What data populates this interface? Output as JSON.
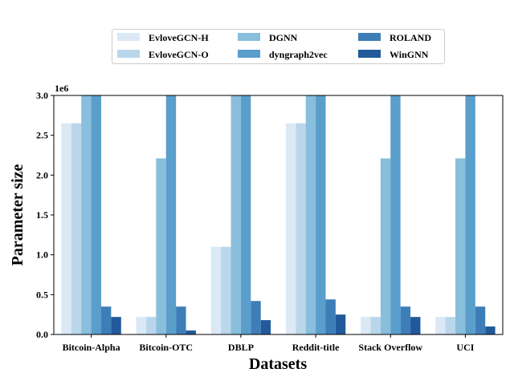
{
  "chart_data": {
    "type": "bar",
    "xlabel": "Datasets",
    "ylabel": "Parameter size",
    "y_offset_label": "1e6",
    "ylim": [
      0,
      3.0
    ],
    "y_ticks": [
      0.0,
      0.5,
      1.0,
      1.5,
      2.0,
      2.5,
      3.0
    ],
    "y_tick_labels": [
      "0.0",
      "0.5",
      "1.0",
      "1.5",
      "2.0",
      "2.5",
      "3.0"
    ],
    "categories": [
      "Bitcoin-Alpha",
      "Bitcoin-OTC",
      "DBLP",
      "Reddit-title",
      "Stack Overflow",
      "UCI"
    ],
    "legend_placement": "top-center",
    "grid": false,
    "series": [
      {
        "name": "EvloveGCN-H",
        "color": "#dbe9f6",
        "values": [
          2.65,
          0.22,
          1.1,
          2.65,
          0.22,
          0.22
        ]
      },
      {
        "name": "EvloveGCN-O",
        "color": "#bad6eb",
        "values": [
          2.65,
          0.22,
          1.1,
          2.65,
          0.22,
          0.22
        ]
      },
      {
        "name": "DGNN",
        "color": "#89bedc",
        "values": [
          3.0,
          2.21,
          3.0,
          3.0,
          2.21,
          2.21
        ]
      },
      {
        "name": "dyngraph2vec",
        "color": "#5a9ecc",
        "values": [
          3.0,
          3.0,
          3.0,
          3.0,
          3.0,
          3.0
        ]
      },
      {
        "name": "ROLAND",
        "color": "#3d7eb9",
        "values": [
          0.35,
          0.35,
          0.42,
          0.44,
          0.35,
          0.35
        ]
      },
      {
        "name": "WinGNN",
        "color": "#22599a",
        "values": [
          0.22,
          0.05,
          0.18,
          0.25,
          0.22,
          0.1
        ]
      }
    ]
  }
}
